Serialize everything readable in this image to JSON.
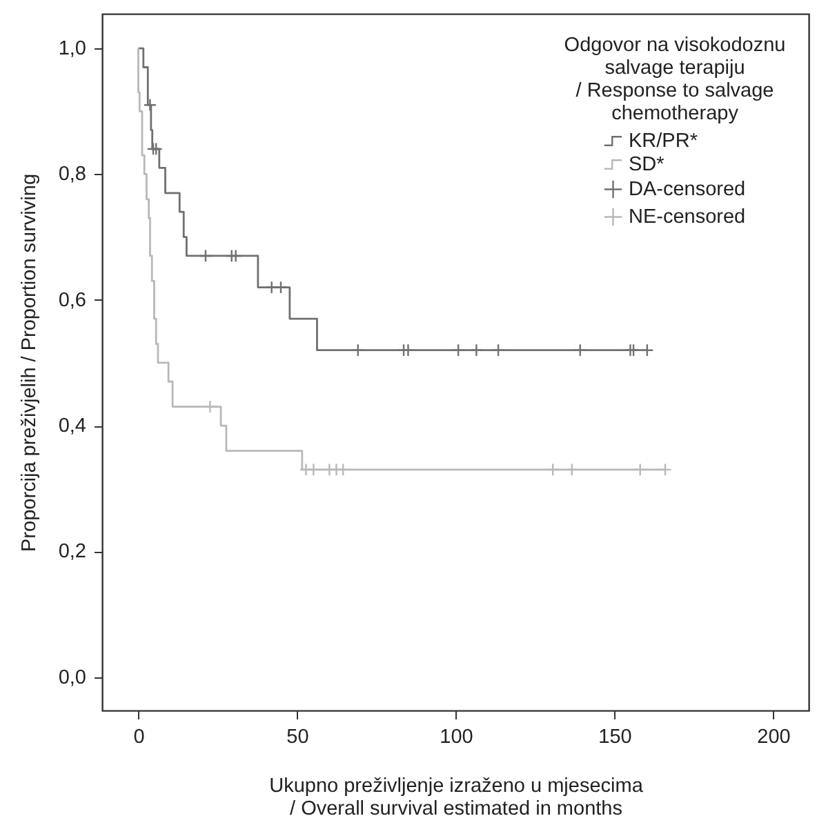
{
  "chart_data": {
    "type": "step",
    "xlabel": "Ukupno preživljenje izraženo u mjesecima\n/ Overall survival estimated in months",
    "ylabel": "Proporcija preživjelih / Proportion surviving",
    "legend_title": "Odgovor na visokodoznu\nsalvage terapiju\n/ Response to salvage\nchemotherapy",
    "legend": "top right",
    "grid": false,
    "xlim": [
      -11.4,
      211.2
    ],
    "ylim": [
      -0.053,
      1.055
    ],
    "xticks": [
      0,
      50,
      100,
      150,
      200
    ],
    "yticks": [
      {
        "value": 0,
        "label": "0,0"
      },
      {
        "value": 0.2,
        "label": "0,2"
      },
      {
        "value": 0.4,
        "label": "0,4"
      },
      {
        "value": 0.6,
        "label": "0,6"
      },
      {
        "value": 0.8,
        "label": "0,8"
      },
      {
        "value": 1,
        "label": "1,0"
      }
    ],
    "series": [
      {
        "name": "KR/PR*",
        "color": "#707070",
        "x": [
          0,
          1.6,
          3.0,
          4.0,
          4.4,
          6.6,
          8.5,
          13.0,
          14.3,
          15.2,
          37.7,
          47.7,
          56.3,
          160.3
        ],
        "values": [
          1.0,
          0.97,
          0.91,
          0.87,
          0.84,
          0.81,
          0.77,
          0.74,
          0.7,
          0.67,
          0.62,
          0.57,
          0.52,
          0.52
        ]
      },
      {
        "name": "SD*",
        "color": "#b8b8b8",
        "x": [
          0,
          0,
          0.4,
          1.2,
          1.9,
          2.6,
          3.3,
          3.7,
          4.3,
          5.0,
          5.6,
          6.2,
          9.5,
          10.8,
          26.0,
          27.7,
          51.6,
          166.0
        ],
        "values": [
          1.0,
          0.93,
          0.9,
          0.83,
          0.8,
          0.76,
          0.73,
          0.67,
          0.63,
          0.57,
          0.53,
          0.5,
          0.47,
          0.43,
          0.4,
          0.36,
          0.33,
          0.33
        ]
      },
      {
        "name": "DA-censored",
        "type": "scatter",
        "marker": "cross",
        "color": "#707070",
        "x": [
          3.7,
          4.7,
          5.6,
          21.2,
          29.4,
          30.7,
          42.0,
          44.9,
          69.2,
          83.6,
          85.0,
          100.8,
          106.5,
          113.4,
          139.2,
          155.0,
          156.0,
          160.3
        ],
        "values": [
          0.91,
          0.84,
          0.84,
          0.67,
          0.67,
          0.67,
          0.62,
          0.62,
          0.52,
          0.52,
          0.52,
          0.52,
          0.52,
          0.52,
          0.52,
          0.52,
          0.52,
          0.52
        ]
      },
      {
        "name": "NE-censored",
        "type": "scatter",
        "marker": "cross",
        "color": "#b8b8b8",
        "x": [
          22.6,
          52.8,
          55.2,
          60.2,
          62.4,
          64.5,
          130.6,
          136.6,
          158.1,
          166.0
        ],
        "values": [
          0.43,
          0.33,
          0.33,
          0.33,
          0.33,
          0.33,
          0.33,
          0.33,
          0.33,
          0.33
        ]
      }
    ]
  }
}
